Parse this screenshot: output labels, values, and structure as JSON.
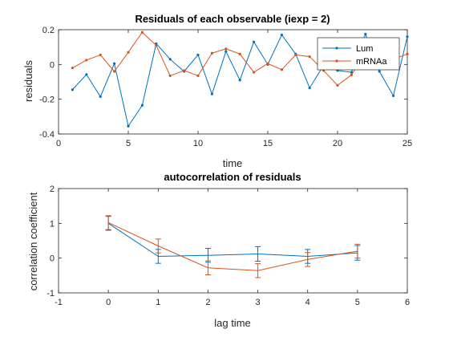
{
  "chart_data": [
    {
      "type": "line",
      "title": "Residuals of each observable (iexp = 2)",
      "xlabel": "time",
      "ylabel": "residuals",
      "xlim": [
        0,
        25
      ],
      "ylim": [
        -0.4,
        0.2
      ],
      "xticks": [
        0,
        5,
        10,
        15,
        20,
        25
      ],
      "yticks": [
        -0.4,
        -0.2,
        0,
        0.2
      ],
      "xtick_labels": [
        "0",
        "5",
        "10",
        "15",
        "20",
        "25"
      ],
      "ytick_labels": [
        "-0.4",
        "-0.2",
        "0",
        "0.2"
      ],
      "legend_position": "top-right",
      "x": [
        1,
        2,
        3,
        4,
        5,
        6,
        7,
        8,
        9,
        10,
        11,
        12,
        13,
        14,
        15,
        16,
        17,
        18,
        19,
        20,
        21,
        22,
        23,
        24,
        25
      ],
      "series": [
        {
          "name": "Lum",
          "color": "#0072BD",
          "values": [
            -0.145,
            -0.058,
            -0.185,
            0.005,
            -0.355,
            -0.235,
            0.12,
            0.03,
            -0.04,
            0.055,
            -0.17,
            0.075,
            -0.09,
            0.13,
            0.0,
            0.17,
            0.06,
            -0.135,
            -0.005,
            -0.035,
            -0.045,
            0.175,
            -0.04,
            -0.18,
            0.16
          ]
        },
        {
          "name": "mRNAa",
          "color": "#D95319",
          "values": [
            -0.02,
            0.025,
            0.055,
            -0.04,
            0.07,
            0.185,
            0.11,
            -0.065,
            -0.035,
            -0.065,
            0.065,
            0.09,
            0.06,
            -0.045,
            0.005,
            -0.03,
            0.055,
            0.045,
            -0.035,
            -0.12,
            -0.06,
            0.07,
            0.01,
            0.03,
            0.06
          ]
        }
      ]
    },
    {
      "type": "line",
      "title": "autocorrelation of residuals",
      "xlabel": "lag time",
      "ylabel": "correlation coefficient",
      "xlim": [
        -1,
        6
      ],
      "ylim": [
        -1,
        2
      ],
      "xticks": [
        -1,
        0,
        1,
        2,
        3,
        4,
        5,
        6
      ],
      "yticks": [
        -1,
        0,
        1,
        2
      ],
      "xtick_labels": [
        "-1",
        "0",
        "1",
        "2",
        "3",
        "4",
        "5",
        "6"
      ],
      "ytick_labels": [
        "-1",
        "0",
        "1",
        "2"
      ],
      "series": [
        {
          "name": "",
          "color": "#0072BD",
          "x": [
            0,
            1,
            2,
            3,
            4,
            5
          ],
          "values": [
            1.0,
            0.05,
            0.08,
            0.12,
            0.05,
            0.15
          ],
          "errors": [
            0.2,
            0.2,
            0.2,
            0.21,
            0.2,
            0.21
          ]
        },
        {
          "name": "",
          "color": "#D95319",
          "x": [
            0,
            1,
            2,
            3,
            4,
            5
          ],
          "values": [
            1.02,
            0.35,
            -0.28,
            -0.36,
            -0.04,
            0.2
          ],
          "errors": [
            0.2,
            0.2,
            0.2,
            0.2,
            0.2,
            0.2
          ]
        }
      ]
    }
  ]
}
